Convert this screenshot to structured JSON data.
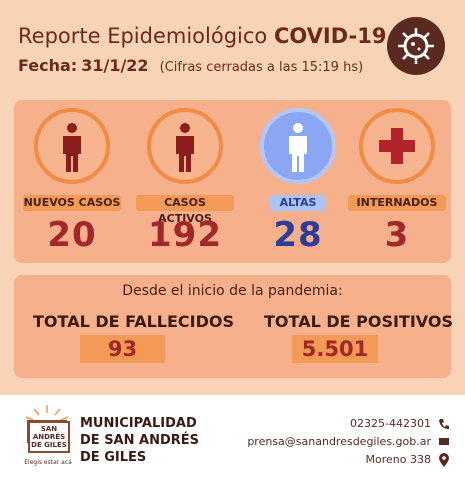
{
  "header": {
    "title": "Reporte Epidemiológico",
    "title_bold": "COVID-19",
    "date_label": "Fecha:",
    "date": "31/1/22",
    "note": "(Cifras cerradas a las 15:19 hs)"
  },
  "stats": [
    {
      "label": "NUEVOS CASOS",
      "value": "20"
    },
    {
      "label": "CASOS ACTIVOS",
      "value": "192"
    },
    {
      "label": "ALTAS",
      "value": "28"
    },
    {
      "label": "INTERNADOS",
      "value": "3"
    }
  ],
  "totals": {
    "intro": "Desde el inicio de la pandemia:",
    "items": [
      {
        "label": "TOTAL DE FALLECIDOS",
        "value": "93"
      },
      {
        "label": "TOTAL DE POSITIVOS",
        "value": "5.501"
      }
    ]
  },
  "footer": {
    "logo": {
      "line1": "SAN",
      "line2": "ANDRÉS",
      "line3": "DE GILES",
      "slogan": "Elegís estar acá"
    },
    "org": [
      "MUNICIPALIDAD",
      "DE SAN ANDRÉS",
      "DE GILES"
    ],
    "phone": "02325-442301",
    "email": "prensa@sanandresdegiles.gob.ar",
    "address": "Moreno 338"
  }
}
